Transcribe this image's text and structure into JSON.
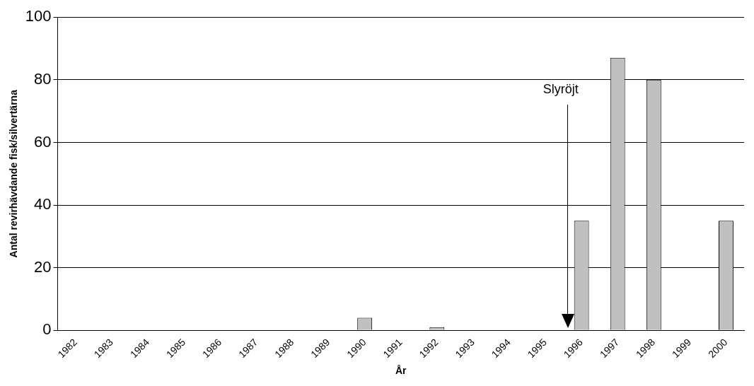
{
  "chart_data": {
    "type": "bar",
    "xlabel": "År",
    "ylabel": "Antal revirhävdande fisk/silvertärna",
    "categories": [
      "1982",
      "1983",
      "1984",
      "1985",
      "1986",
      "1987",
      "1988",
      "1989",
      "1990",
      "1991",
      "1992",
      "1993",
      "1994",
      "1995",
      "1996",
      "1997",
      "1998",
      "1999",
      "2000"
    ],
    "values": [
      0,
      0,
      0,
      0,
      0,
      0,
      0,
      0,
      4,
      0,
      1,
      0,
      0,
      0,
      35,
      87,
      80,
      0,
      35
    ],
    "color": "#c0c0c0",
    "ylim": [
      0,
      100
    ],
    "yticks": [
      0,
      20,
      40,
      60,
      80,
      100
    ],
    "grid": "y",
    "annotations": [
      "Slyröjt"
    ]
  }
}
